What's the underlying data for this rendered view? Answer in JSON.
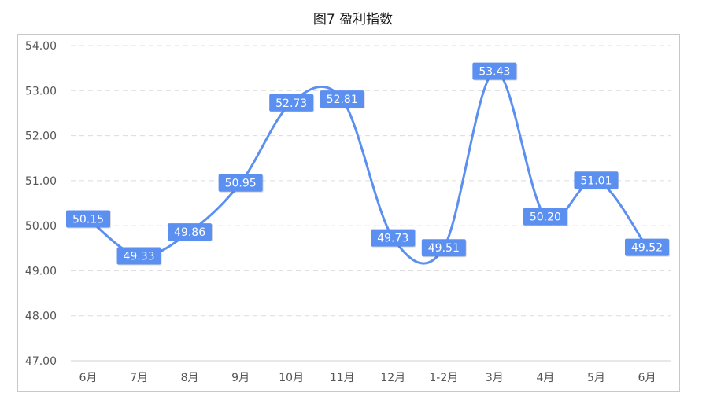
{
  "title": "图7 盈利指数",
  "chart_data": {
    "type": "line",
    "title": "图7 盈利指数",
    "categories": [
      "6月",
      "7月",
      "8月",
      "9月",
      "10月",
      "11月",
      "12月",
      "1-2月",
      "3月",
      "4月",
      "5月",
      "6月"
    ],
    "values": [
      50.15,
      49.33,
      49.86,
      50.95,
      52.73,
      52.81,
      49.73,
      49.51,
      53.43,
      50.2,
      51.01,
      49.52
    ],
    "value_labels": [
      "50.15",
      "49.33",
      "49.86",
      "50.95",
      "52.73",
      "52.81",
      "49.73",
      "49.51",
      "53.43",
      "50.20",
      "51.01",
      "49.52"
    ],
    "y_ticks": [
      "47.00",
      "48.00",
      "49.00",
      "50.00",
      "51.00",
      "52.00",
      "53.00",
      "54.00"
    ],
    "ylim": [
      47,
      54
    ],
    "xlabel": "",
    "ylabel": "",
    "grid": true,
    "line_style": "smooth",
    "colors": {
      "line": "#5b8ff0",
      "label_bg": "#5b8ff0",
      "grid": "#dcdcdc"
    }
  }
}
